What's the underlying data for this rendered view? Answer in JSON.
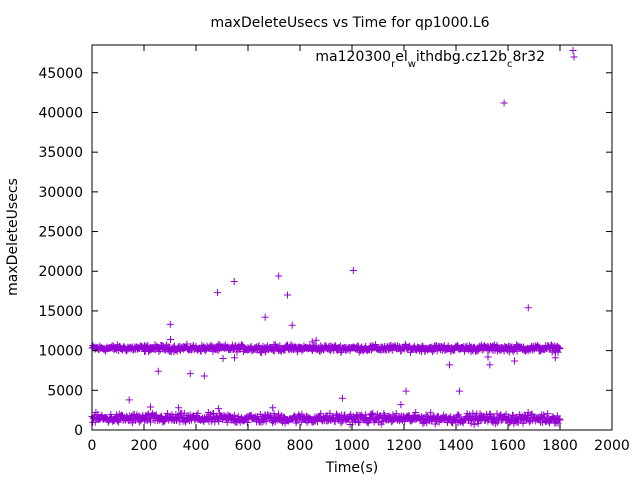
{
  "chart_data": {
    "type": "scatter",
    "title": "maxDeleteUsecs vs Time for qp1000.L6",
    "xlabel": "Time(s)",
    "ylabel": "maxDeleteUsecs",
    "xlim": [
      0,
      2000
    ],
    "ylim": [
      0,
      48500
    ],
    "xticks": [
      "0",
      "200",
      "400",
      "600",
      "800",
      "1000",
      "1200",
      "1400",
      "1600",
      "1800",
      "2000"
    ],
    "yticks": [
      "0",
      "5000",
      "10000",
      "15000",
      "20000",
      "25000",
      "30000",
      "35000",
      "40000",
      "45000"
    ],
    "legend": {
      "position": "top-right",
      "segments": [
        "ma120300",
        "r",
        "el",
        "w",
        "ithdbg.cz12b",
        "c",
        "8r32"
      ]
    },
    "marker": "+",
    "color": "#9400d3",
    "series": [
      {
        "name": "ma120300_rel_withdbg.cz12b_c8r32",
        "outliers": [
          {
            "x": 1850,
            "y": 47800
          },
          {
            "x": 1585,
            "y": 41200
          },
          {
            "x": 1005,
            "y": 20100
          },
          {
            "x": 718,
            "y": 19400
          },
          {
            "x": 547,
            "y": 18700
          },
          {
            "x": 483,
            "y": 17300
          },
          {
            "x": 752,
            "y": 17000
          },
          {
            "x": 1678,
            "y": 15400
          },
          {
            "x": 666,
            "y": 14200
          },
          {
            "x": 301,
            "y": 13300
          },
          {
            "x": 770,
            "y": 13200
          },
          {
            "x": 1720,
            "y": 10000
          },
          {
            "x": 1782,
            "y": 9100
          },
          {
            "x": 1530,
            "y": 8200
          },
          {
            "x": 1375,
            "y": 8200
          },
          {
            "x": 1625,
            "y": 8700
          },
          {
            "x": 1523,
            "y": 9200
          },
          {
            "x": 504,
            "y": 9000
          },
          {
            "x": 255,
            "y": 7400
          },
          {
            "x": 378,
            "y": 7100
          },
          {
            "x": 432,
            "y": 6800
          },
          {
            "x": 143,
            "y": 3800
          },
          {
            "x": 963,
            "y": 4000
          },
          {
            "x": 1208,
            "y": 4900
          },
          {
            "x": 1413,
            "y": 4900
          },
          {
            "x": 1188,
            "y": 3200
          },
          {
            "x": 225,
            "y": 2900
          },
          {
            "x": 333,
            "y": 2800
          },
          {
            "x": 487,
            "y": 2700
          },
          {
            "x": 695,
            "y": 2800
          },
          {
            "x": 302,
            "y": 11400
          },
          {
            "x": 862,
            "y": 11300
          },
          {
            "x": 847,
            "y": 11100
          },
          {
            "x": 548,
            "y": 9100
          },
          {
            "x": 202,
            "y": 9900
          }
        ],
        "bands": [
          {
            "label": "upper band",
            "x_from": 0,
            "x_to": 1800,
            "y_center": 10300,
            "y_spread": 600
          },
          {
            "label": "lower band",
            "x_from": 0,
            "x_to": 1800,
            "y_center": 1450,
            "y_spread": 900
          }
        ]
      }
    ]
  }
}
